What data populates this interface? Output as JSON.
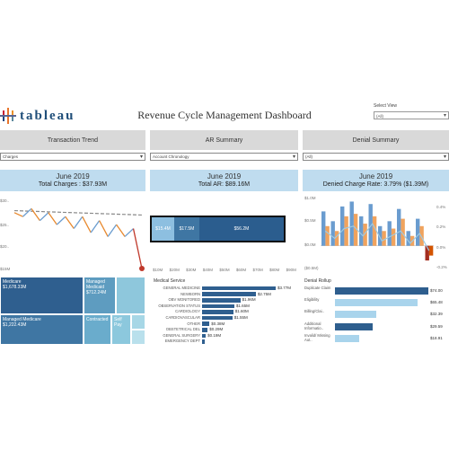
{
  "header": {
    "logo_text": "tableau",
    "title": "Revenue Cycle Management Dashboard",
    "select_view_label": "Select View",
    "select_view_value": "(All)"
  },
  "panels": {
    "transaction": {
      "tab": "Transaction Trend",
      "filter": "Charges",
      "month": "June 2019",
      "metric": "Total Charges : $37.93M",
      "y_ticks": [
        "$30..",
        "$25..",
        "$20..",
        "$15M"
      ],
      "treemap": [
        {
          "name": "Medicare",
          "value": "$1,678.33M"
        },
        {
          "name": "Managed Medicaid",
          "value": "$712.24M"
        },
        {
          "name": "Managed Medicare",
          "value": "$1,222.43M"
        },
        {
          "name": "Contracted",
          "value": ""
        },
        {
          "name": "Self Pay",
          "value": ""
        }
      ]
    },
    "ar": {
      "tab": "AR Summary",
      "filter": "Account Chronology",
      "month": "June 2019",
      "metric": "Total AR: $89.16M",
      "stack": [
        "$15.4M",
        "$17.5M",
        "$56.2M"
      ],
      "x_ticks": [
        "$10M",
        "$20M",
        "$30M",
        "$40M",
        "$50M",
        "$60M",
        "$70M",
        "$80M",
        "$90M"
      ],
      "service_title": "Medical Service",
      "services": [
        {
          "label": "GENERAL MEDICINE",
          "value": "$3.77M",
          "num": 3.77
        },
        {
          "label": "NEWBORN",
          "value": "$2.75M",
          "num": 2.75
        },
        {
          "label": "OBV MONITORED",
          "value": "$1.96M",
          "num": 1.96
        },
        {
          "label": "OBSERVATION STATUS",
          "value": "$1.65M",
          "num": 1.65
        },
        {
          "label": "CARDIOLOGY",
          "value": "$1.60M",
          "num": 1.6
        },
        {
          "label": "CARDIOVASCULAR",
          "value": "$1.55M",
          "num": 1.55
        },
        {
          "label": "OTHER",
          "value": "$0.38M",
          "num": 0.38
        },
        {
          "label": "OBSTETRICAL DEL",
          "value": "$0.29M",
          "num": 0.29
        },
        {
          "label": "GENERAL SURGERY",
          "value": "$0.19M",
          "num": 0.19
        },
        {
          "label": "EMERGENCY DEPT",
          "value": "",
          "num": 0.12
        }
      ]
    },
    "denial": {
      "tab": "Denial Summary",
      "filter": "(All)",
      "month": "June 2019",
      "metric": "Denied Charge Rate: 3.79% ($1.39M)",
      "y_left": [
        "$1.0M",
        "$0.5M",
        "$0.0M",
        "($0.5M)"
      ],
      "y_right": [
        "0.4%",
        "0.2%",
        "0.0%",
        "-0.2%"
      ],
      "rollup_title": "Denial Rollup",
      "rollup": [
        {
          "label": "Duplicate Claim",
          "value": "$74.00",
          "num": 1.0,
          "color": "#2e5e8e"
        },
        {
          "label": "Eligibility",
          "value": "$65.48",
          "num": 0.88,
          "color": "#a9d4ec"
        },
        {
          "label": "Billing/Clai..",
          "value": "$32.39",
          "num": 0.44,
          "color": "#a9d4ec"
        },
        {
          "label": "Additional Informatio..",
          "value": "$29.59",
          "num": 0.4,
          "color": "#2e5e8e"
        },
        {
          "label": "Invalid/ Missing Aut..",
          "value": "$18.91",
          "num": 0.26,
          "color": "#a9d4ec"
        }
      ]
    }
  },
  "chart_data": [
    {
      "type": "line",
      "series": [
        {
          "values": [
            28,
            27,
            29,
            26,
            28,
            25,
            27,
            24,
            27,
            23,
            26,
            22,
            25,
            22,
            24,
            14
          ]
        }
      ],
      "trend_values": [
        28.5,
        27.4
      ],
      "ylim": [
        14,
        32
      ]
    },
    {
      "type": "bar",
      "series": [
        {
          "values": [
            0.7,
            0.5,
            0.8,
            0.9,
            0.6,
            0.85,
            0.4,
            0.5,
            0.75,
            0.3,
            0.55,
            -0.3
          ]
        },
        {
          "values": [
            0.4,
            0.3,
            0.6,
            0.65,
            0.45,
            0.6,
            0.3,
            0.35,
            0.55,
            0.2,
            0.4,
            -0.2
          ]
        }
      ],
      "line_values": [
        0.3,
        0.15,
        0.35,
        0.4,
        0.2,
        0.45,
        0.1,
        0.2,
        0.3,
        0.05,
        0.25,
        -0.1
      ],
      "ylim": [
        -0.5,
        1.0
      ]
    }
  ]
}
